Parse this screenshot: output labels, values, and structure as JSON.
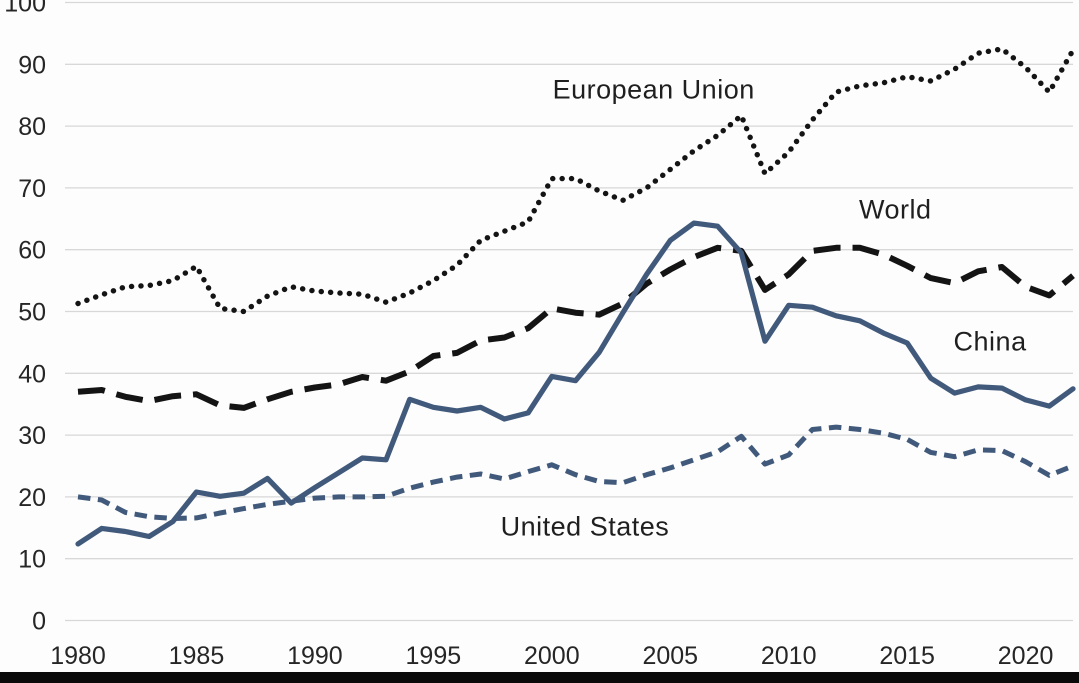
{
  "figure": {
    "background": "#fdfdfd",
    "gridline_color": "#d8d8d8",
    "axis_text_color": "#262626",
    "bottom_bar_color": "#0a0a0a",
    "black_series_color": "#141414",
    "blue_series_color": "#415a7c"
  },
  "chart_data": {
    "type": "line",
    "title": "",
    "xlabel": "",
    "ylabel": "",
    "grid": "horizontal",
    "legend": "inline-labels",
    "xlim": [
      1979.5,
      2022.3
    ],
    "ylim": [
      0,
      100
    ],
    "yticks": [
      0,
      10,
      20,
      30,
      40,
      50,
      60,
      70,
      80,
      90,
      100
    ],
    "xticks": [
      1980,
      1985,
      1990,
      1995,
      2000,
      2005,
      2010,
      2015,
      2020
    ],
    "x": [
      1980,
      1981,
      1982,
      1983,
      1984,
      1985,
      1986,
      1987,
      1988,
      1989,
      1990,
      1991,
      1992,
      1993,
      1994,
      1995,
      1996,
      1997,
      1998,
      1999,
      2000,
      2001,
      2002,
      2003,
      2004,
      2005,
      2006,
      2007,
      2008,
      2009,
      2010,
      2011,
      2012,
      2013,
      2014,
      2015,
      2016,
      2017,
      2018,
      2019,
      2020,
      2021,
      2022
    ],
    "series": [
      {
        "name": "European Union",
        "style": "dotted",
        "color": "#141414",
        "values": [
          51.3,
          52.7,
          54.0,
          54.2,
          55.0,
          57.3,
          50.5,
          50.0,
          52.5,
          54.0,
          53.3,
          53.0,
          52.8,
          51.5,
          53.0,
          55.0,
          57.5,
          61.5,
          63.0,
          64.5,
          71.5,
          71.5,
          69.5,
          68.0,
          70.0,
          73.0,
          76.0,
          78.5,
          81.7,
          72.3,
          75.8,
          81.0,
          85.5,
          86.5,
          87.0,
          88.0,
          87.3,
          89.2,
          91.8,
          92.5,
          89.5,
          85.5,
          92.3
        ]
      },
      {
        "name": "World",
        "style": "long-dash",
        "color": "#141414",
        "values": [
          37.0,
          37.3,
          36.2,
          35.5,
          36.3,
          36.6,
          34.8,
          34.4,
          35.8,
          37.0,
          37.7,
          38.2,
          39.4,
          38.8,
          40.3,
          42.8,
          43.3,
          45.3,
          45.8,
          47.3,
          50.5,
          49.8,
          49.5,
          51.3,
          54.5,
          56.8,
          58.8,
          60.3,
          59.8,
          53.5,
          56.0,
          59.8,
          60.3,
          60.3,
          59.2,
          57.4,
          55.4,
          54.6,
          56.5,
          57.2,
          54.0,
          52.6,
          55.8
        ]
      },
      {
        "name": "China",
        "style": "solid",
        "color": "#415a7c",
        "values": [
          12.4,
          14.9,
          14.4,
          13.6,
          16.0,
          20.8,
          20.1,
          20.6,
          23.0,
          19.0,
          21.5,
          23.9,
          26.3,
          26.0,
          35.8,
          34.5,
          33.9,
          34.5,
          32.6,
          33.6,
          39.5,
          38.8,
          43.4,
          49.8,
          56.0,
          61.5,
          64.3,
          63.8,
          59.5,
          45.2,
          51.0,
          50.7,
          49.3,
          48.5,
          46.5,
          44.9,
          39.2,
          36.8,
          37.8,
          37.6,
          35.7,
          34.7,
          37.5
        ]
      },
      {
        "name": "United States",
        "style": "short-dash",
        "color": "#415a7c",
        "values": [
          20.0,
          19.5,
          17.5,
          16.8,
          16.5,
          16.6,
          17.4,
          18.1,
          18.8,
          19.3,
          19.8,
          20.0,
          20.0,
          20.1,
          21.4,
          22.4,
          23.2,
          23.7,
          22.9,
          24.1,
          25.2,
          23.6,
          22.5,
          22.3,
          23.6,
          24.7,
          26.0,
          27.3,
          29.8,
          25.3,
          26.8,
          30.9,
          31.3,
          30.9,
          30.3,
          29.3,
          27.2,
          26.5,
          27.6,
          27.5,
          25.7,
          23.5,
          25.0
        ]
      }
    ],
    "annotations": [
      {
        "text": "European Union",
        "x": 2004.3,
        "y": 85.8
      },
      {
        "text": "World",
        "x": 2014.5,
        "y": 66.4
      },
      {
        "text": "China",
        "x": 2018.5,
        "y": 45.0
      },
      {
        "text": "United States",
        "x": 2001.4,
        "y": 15.2
      }
    ]
  }
}
